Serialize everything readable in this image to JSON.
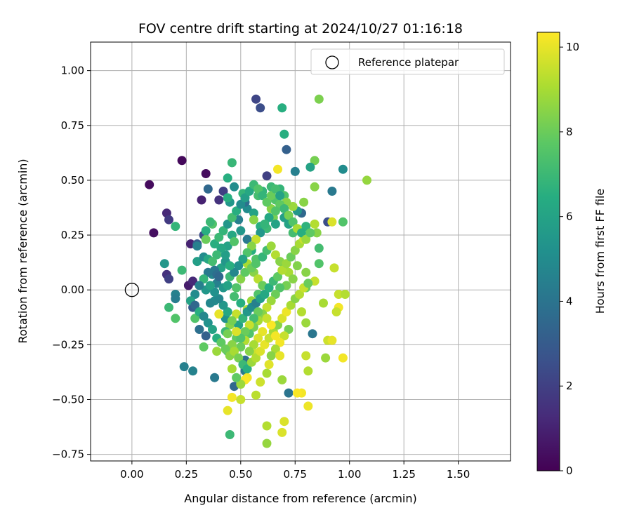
{
  "chart_data": {
    "type": "scatter",
    "title": "FOV centre drift starting at 2024/10/27 01:16:18",
    "xlabel": "Angular distance from reference (arcmin)",
    "ylabel": "Rotation from reference (arcmin)",
    "xlim": [
      -0.19,
      1.74
    ],
    "ylim": [
      -0.78,
      1.13
    ],
    "xticks": [
      "0.00",
      "0.25",
      "0.50",
      "0.75",
      "1.00",
      "1.25",
      "1.50"
    ],
    "yticks": [
      "−0.75",
      "−0.50",
      "−0.25",
      "0.00",
      "0.25",
      "0.50",
      "0.75",
      "1.00"
    ],
    "xtick_values": [
      0,
      0.25,
      0.5,
      0.75,
      1.0,
      1.25,
      1.5
    ],
    "ytick_values": [
      -0.75,
      -0.5,
      -0.25,
      0,
      0.25,
      0.5,
      0.75,
      1.0
    ],
    "grid": true,
    "legend": {
      "label": "Reference platepar",
      "placement": "top-right"
    },
    "reference_point": {
      "x": 0.0,
      "y": 0.0
    },
    "colorbar": {
      "label": "Hours from first FF file",
      "colormap": "viridis",
      "range": [
        0,
        10.35
      ],
      "ticks": [
        "0",
        "2",
        "4",
        "6",
        "8",
        "10"
      ],
      "tick_values": [
        0,
        2,
        4,
        6,
        8,
        10
      ]
    },
    "points": [
      [
        0.08,
        0.48,
        0.3
      ],
      [
        0.1,
        0.26,
        0.4
      ],
      [
        0.23,
        0.59,
        0.2
      ],
      [
        0.34,
        0.53,
        0.3
      ],
      [
        0.16,
        0.35,
        1.2
      ],
      [
        0.17,
        0.32,
        1.8
      ],
      [
        0.16,
        0.07,
        1.5
      ],
      [
        0.17,
        0.05,
        2.0
      ],
      [
        0.26,
        0.02,
        0.8
      ],
      [
        0.28,
        0.04,
        1.2
      ],
      [
        0.27,
        0.21,
        1.0
      ],
      [
        0.33,
        0.25,
        2.5
      ],
      [
        0.35,
        0.46,
        3.5
      ],
      [
        0.32,
        0.41,
        1.0
      ],
      [
        0.57,
        0.87,
        2.2
      ],
      [
        0.59,
        0.83,
        2.5
      ],
      [
        0.62,
        0.52,
        2.0
      ],
      [
        0.4,
        0.41,
        1.5
      ],
      [
        0.42,
        0.45,
        2.0
      ],
      [
        0.3,
        0.21,
        3.0
      ],
      [
        0.28,
        -0.08,
        3.0
      ],
      [
        0.31,
        -0.18,
        3.8
      ],
      [
        0.34,
        -0.21,
        3.2
      ],
      [
        0.38,
        -0.4,
        4.2
      ],
      [
        0.24,
        -0.35,
        4.5
      ],
      [
        0.28,
        -0.37,
        4.6
      ],
      [
        0.47,
        -0.44,
        3.5
      ],
      [
        0.52,
        -0.32,
        3.8
      ],
      [
        0.52,
        -0.37,
        4.3
      ],
      [
        0.72,
        -0.47,
        4.0
      ],
      [
        0.83,
        -0.2,
        4.1
      ],
      [
        0.75,
        0.54,
        4.5
      ],
      [
        0.92,
        0.45,
        4.2
      ],
      [
        0.97,
        0.55,
        5.0
      ],
      [
        0.71,
        0.64,
        3.2
      ],
      [
        0.69,
        0.83,
        6.5
      ],
      [
        0.7,
        0.71,
        6.5
      ],
      [
        0.86,
        0.87,
        8.3
      ],
      [
        0.46,
        0.58,
        6.9
      ],
      [
        0.84,
        0.59,
        8.2
      ],
      [
        0.82,
        0.56,
        6.0
      ],
      [
        1.08,
        0.5,
        8.7
      ],
      [
        0.84,
        0.47,
        8.5
      ],
      [
        0.79,
        0.4,
        8.5
      ],
      [
        0.78,
        0.35,
        3.5
      ],
      [
        0.8,
        0.29,
        6.7
      ],
      [
        0.85,
        0.26,
        8.5
      ],
      [
        0.9,
        0.31,
        2.5
      ],
      [
        0.92,
        0.31,
        9.8
      ],
      [
        0.97,
        0.31,
        7.5
      ],
      [
        0.86,
        0.19,
        7.2
      ],
      [
        0.86,
        0.12,
        7.5
      ],
      [
        0.76,
        0.11,
        8.4
      ],
      [
        0.8,
        0.08,
        8.5
      ],
      [
        0.93,
        0.1,
        9.5
      ],
      [
        0.84,
        0.04,
        9.5
      ],
      [
        0.8,
        0.01,
        8.0
      ],
      [
        0.88,
        -0.06,
        9.0
      ],
      [
        0.95,
        -0.02,
        9.5
      ],
      [
        0.98,
        -0.02,
        9.2
      ],
      [
        0.95,
        -0.08,
        10.2
      ],
      [
        0.94,
        -0.1,
        9.5
      ],
      [
        0.78,
        -0.1,
        9.2
      ],
      [
        0.8,
        -0.15,
        8.8
      ],
      [
        0.9,
        -0.23,
        9.6
      ],
      [
        0.92,
        -0.23,
        10.0
      ],
      [
        0.97,
        -0.31,
        10.2
      ],
      [
        0.89,
        -0.31,
        8.8
      ],
      [
        0.8,
        -0.3,
        9.5
      ],
      [
        0.81,
        -0.37,
        9.2
      ],
      [
        0.78,
        -0.47,
        10.2
      ],
      [
        0.81,
        -0.53,
        10.1
      ],
      [
        0.76,
        -0.47,
        10.3
      ],
      [
        0.69,
        -0.41,
        8.8
      ],
      [
        0.7,
        -0.6,
        9.8
      ],
      [
        0.69,
        -0.65,
        9.8
      ],
      [
        0.62,
        -0.62,
        9.2
      ],
      [
        0.62,
        -0.7,
        8.7
      ],
      [
        0.45,
        -0.66,
        7.0
      ],
      [
        0.44,
        -0.55,
        10.0
      ],
      [
        0.46,
        -0.49,
        10.2
      ],
      [
        0.5,
        -0.5,
        9.5
      ],
      [
        0.57,
        -0.48,
        9.3
      ],
      [
        0.59,
        -0.42,
        9.6
      ],
      [
        0.53,
        -0.4,
        10.2
      ],
      [
        0.62,
        -0.38,
        9.0
      ],
      [
        0.57,
        -0.29,
        9.6
      ],
      [
        0.63,
        -0.34,
        9.9
      ],
      [
        0.44,
        -0.28,
        7.0
      ],
      [
        0.39,
        -0.28,
        8.8
      ],
      [
        0.33,
        -0.26,
        7.8
      ],
      [
        0.29,
        -0.13,
        7.5
      ],
      [
        0.23,
        0.09,
        7.0
      ],
      [
        0.2,
        -0.13,
        7.5
      ],
      [
        0.2,
        -0.02,
        4.6
      ],
      [
        0.2,
        -0.04,
        4.4
      ],
      [
        0.17,
        -0.08,
        7.0
      ],
      [
        0.15,
        0.12,
        5.5
      ],
      [
        0.2,
        0.29,
        6.8
      ],
      [
        0.3,
        0.13,
        5.8
      ],
      [
        0.3,
        0.2,
        4.5
      ],
      [
        0.37,
        0.3,
        7.5
      ],
      [
        0.34,
        0.23,
        8.0
      ],
      [
        0.34,
        0.27,
        6.5
      ],
      [
        0.36,
        0.31,
        7.0
      ],
      [
        0.33,
        0.15,
        5.0
      ],
      [
        0.35,
        0.14,
        6.2
      ],
      [
        0.37,
        0.07,
        4.8
      ],
      [
        0.39,
        0.03,
        4.5
      ],
      [
        0.41,
        0.1,
        6.0
      ],
      [
        0.43,
        0.13,
        5.5
      ],
      [
        0.44,
        0.2,
        6.0
      ],
      [
        0.46,
        0.25,
        6.2
      ],
      [
        0.47,
        0.22,
        7.5
      ],
      [
        0.45,
        0.4,
        5.5
      ],
      [
        0.47,
        0.47,
        5.0
      ],
      [
        0.44,
        0.42,
        6.5
      ],
      [
        0.44,
        0.51,
        6.5
      ],
      [
        0.51,
        0.44,
        6.8
      ],
      [
        0.53,
        0.37,
        5.0
      ],
      [
        0.56,
        0.35,
        6.0
      ],
      [
        0.56,
        0.32,
        8.5
      ],
      [
        0.59,
        0.29,
        6.5
      ],
      [
        0.62,
        0.28,
        7.0
      ],
      [
        0.64,
        0.37,
        8.5
      ],
      [
        0.65,
        0.33,
        8.2
      ],
      [
        0.66,
        0.3,
        6.0
      ],
      [
        0.66,
        0.41,
        7.5
      ],
      [
        0.68,
        0.46,
        6.8
      ],
      [
        0.7,
        0.43,
        7.5
      ],
      [
        0.67,
        0.55,
        10.2
      ],
      [
        0.64,
        0.47,
        7.0
      ],
      [
        0.6,
        0.45,
        6.8
      ],
      [
        0.58,
        0.43,
        7.2
      ],
      [
        0.52,
        0.4,
        3.8
      ],
      [
        0.49,
        0.32,
        4.5
      ],
      [
        0.5,
        0.27,
        5.5
      ],
      [
        0.53,
        0.23,
        4.2
      ],
      [
        0.55,
        0.18,
        6.5
      ],
      [
        0.57,
        0.14,
        7.5
      ],
      [
        0.56,
        0.08,
        8.5
      ],
      [
        0.58,
        0.05,
        9.3
      ],
      [
        0.6,
        0.02,
        8.0
      ],
      [
        0.58,
        -0.02,
        7.5
      ],
      [
        0.55,
        -0.05,
        8.8
      ],
      [
        0.53,
        -0.09,
        9.2
      ],
      [
        0.5,
        -0.06,
        6.5
      ],
      [
        0.47,
        -0.03,
        7.2
      ],
      [
        0.48,
        -0.11,
        9.5
      ],
      [
        0.45,
        -0.16,
        8.5
      ],
      [
        0.43,
        -0.19,
        7.0
      ],
      [
        0.43,
        -0.13,
        5.2
      ],
      [
        0.4,
        -0.11,
        10.0
      ],
      [
        0.38,
        -0.05,
        5.0
      ],
      [
        0.36,
        -0.06,
        4.8
      ],
      [
        0.34,
        0.0,
        5.5
      ],
      [
        0.38,
        0.09,
        4.2
      ],
      [
        0.39,
        0.07,
        3.8
      ],
      [
        0.4,
        0.06,
        3.5
      ],
      [
        0.42,
        0.01,
        5.5
      ],
      [
        0.44,
        0.02,
        6.0
      ],
      [
        0.45,
        0.06,
        7.0
      ],
      [
        0.48,
        0.01,
        7.5
      ],
      [
        0.5,
        0.05,
        8.5
      ],
      [
        0.52,
        0.08,
        7.8
      ],
      [
        0.53,
        0.12,
        9.0
      ],
      [
        0.55,
        0.1,
        8.0
      ],
      [
        0.57,
        0.12,
        7.5
      ],
      [
        0.6,
        0.15,
        6.8
      ],
      [
        0.62,
        0.18,
        7.2
      ],
      [
        0.64,
        0.2,
        8.8
      ],
      [
        0.66,
        0.16,
        9.2
      ],
      [
        0.68,
        0.13,
        8.5
      ],
      [
        0.7,
        0.1,
        8.2
      ],
      [
        0.72,
        0.08,
        9.0
      ],
      [
        0.74,
        0.05,
        8.5
      ],
      [
        0.71,
        0.02,
        8.2
      ],
      [
        0.68,
        0.01,
        7.5
      ],
      [
        0.66,
        -0.02,
        8.0
      ],
      [
        0.64,
        -0.05,
        8.8
      ],
      [
        0.62,
        -0.08,
        9.5
      ],
      [
        0.6,
        -0.11,
        8.5
      ],
      [
        0.58,
        -0.14,
        9.0
      ],
      [
        0.56,
        -0.17,
        8.2
      ],
      [
        0.54,
        -0.2,
        7.5
      ],
      [
        0.52,
        -0.23,
        9.2
      ],
      [
        0.5,
        -0.26,
        8.0
      ],
      [
        0.48,
        -0.22,
        7.8
      ],
      [
        0.46,
        -0.25,
        8.5
      ],
      [
        0.44,
        -0.2,
        8.2
      ],
      [
        0.49,
        -0.16,
        6.0
      ],
      [
        0.51,
        -0.13,
        6.8
      ],
      [
        0.53,
        -0.1,
        5.5
      ],
      [
        0.55,
        -0.08,
        5.0
      ],
      [
        0.57,
        -0.06,
        4.5
      ],
      [
        0.59,
        -0.04,
        5.8
      ],
      [
        0.61,
        -0.02,
        6.2
      ],
      [
        0.63,
        0.01,
        6.5
      ],
      [
        0.65,
        0.04,
        7.0
      ],
      [
        0.67,
        0.06,
        7.8
      ],
      [
        0.69,
        0.09,
        9.2
      ],
      [
        0.71,
        0.12,
        8.8
      ],
      [
        0.73,
        0.15,
        8.0
      ],
      [
        0.75,
        0.18,
        8.5
      ],
      [
        0.77,
        0.21,
        9.0
      ],
      [
        0.79,
        0.23,
        9.5
      ],
      [
        0.74,
        0.26,
        7.2
      ],
      [
        0.72,
        0.3,
        6.0
      ],
      [
        0.7,
        0.33,
        5.8
      ],
      [
        0.76,
        0.36,
        5.5
      ],
      [
        0.74,
        0.38,
        8.8
      ],
      [
        0.71,
        0.4,
        8.5
      ],
      [
        0.68,
        0.39,
        7.8
      ],
      [
        0.66,
        0.36,
        7.5
      ],
      [
        0.63,
        0.33,
        6.2
      ],
      [
        0.61,
        0.3,
        6.8
      ],
      [
        0.59,
        0.26,
        5.5
      ],
      [
        0.57,
        0.23,
        9.5
      ],
      [
        0.55,
        0.2,
        8.5
      ],
      [
        0.53,
        0.17,
        7.5
      ],
      [
        0.51,
        0.14,
        6.0
      ],
      [
        0.49,
        0.11,
        5.2
      ],
      [
        0.47,
        0.08,
        4.8
      ],
      [
        0.45,
        0.11,
        6.5
      ],
      [
        0.43,
        0.16,
        5.8
      ],
      [
        0.41,
        0.19,
        6.2
      ],
      [
        0.39,
        0.16,
        7.0
      ],
      [
        0.37,
        0.13,
        7.2
      ],
      [
        0.35,
        0.08,
        4.2
      ],
      [
        0.33,
        0.05,
        6.8
      ],
      [
        0.31,
        0.02,
        4.5
      ],
      [
        0.29,
        -0.02,
        5.0
      ],
      [
        0.27,
        -0.05,
        6.0
      ],
      [
        0.29,
        -0.07,
        3.5
      ],
      [
        0.31,
        -0.1,
        6.5
      ],
      [
        0.33,
        -0.12,
        4.8
      ],
      [
        0.35,
        -0.15,
        5.2
      ],
      [
        0.37,
        -0.18,
        6.0
      ],
      [
        0.39,
        -0.22,
        6.5
      ],
      [
        0.41,
        -0.24,
        7.8
      ],
      [
        0.43,
        -0.27,
        8.0
      ],
      [
        0.45,
        -0.3,
        8.5
      ],
      [
        0.47,
        -0.28,
        9.0
      ],
      [
        0.49,
        -0.31,
        8.2
      ],
      [
        0.51,
        -0.34,
        7.0
      ],
      [
        0.53,
        -0.36,
        6.5
      ],
      [
        0.55,
        -0.33,
        8.8
      ],
      [
        0.57,
        -0.31,
        9.2
      ],
      [
        0.59,
        -0.28,
        9.8
      ],
      [
        0.61,
        -0.25,
        10.0
      ],
      [
        0.63,
        -0.22,
        9.5
      ],
      [
        0.65,
        -0.19,
        9.0
      ],
      [
        0.67,
        -0.16,
        8.5
      ],
      [
        0.69,
        -0.13,
        9.8
      ],
      [
        0.71,
        -0.1,
        10.1
      ],
      [
        0.73,
        -0.07,
        9.0
      ],
      [
        0.75,
        -0.04,
        8.5
      ],
      [
        0.77,
        -0.02,
        9.2
      ],
      [
        0.79,
        0.01,
        9.5
      ],
      [
        0.81,
        0.03,
        8.0
      ],
      [
        0.72,
        -0.18,
        8.2
      ],
      [
        0.7,
        -0.21,
        9.5
      ],
      [
        0.68,
        -0.24,
        10.2
      ],
      [
        0.66,
        -0.27,
        9.0
      ],
      [
        0.64,
        -0.3,
        8.5
      ],
      [
        0.68,
        -0.3,
        10.0
      ],
      [
        0.66,
        -0.21,
        10.2
      ],
      [
        0.64,
        -0.16,
        10.3
      ],
      [
        0.62,
        -0.13,
        9.5
      ],
      [
        0.6,
        -0.19,
        10.0
      ],
      [
        0.58,
        -0.22,
        9.8
      ],
      [
        0.56,
        -0.25,
        9.0
      ],
      [
        0.54,
        -0.28,
        8.5
      ],
      [
        0.52,
        -0.41,
        10.3
      ],
      [
        0.5,
        -0.43,
        8.8
      ],
      [
        0.48,
        -0.4,
        7.8
      ],
      [
        0.46,
        -0.36,
        9.0
      ],
      [
        0.58,
        -0.1,
        8.0
      ],
      [
        0.56,
        -0.13,
        7.2
      ],
      [
        0.54,
        -0.16,
        9.5
      ],
      [
        0.52,
        -0.19,
        8.0
      ],
      [
        0.5,
        -0.22,
        7.5
      ],
      [
        0.48,
        -0.19,
        9.8
      ],
      [
        0.46,
        -0.14,
        8.2
      ],
      [
        0.44,
        -0.1,
        6.2
      ],
      [
        0.42,
        -0.07,
        5.5
      ],
      [
        0.4,
        -0.04,
        4.8
      ],
      [
        0.38,
        -0.01,
        5.2
      ],
      [
        0.36,
        0.02,
        6.0
      ],
      [
        0.38,
        0.21,
        6.5
      ],
      [
        0.4,
        0.24,
        7.0
      ],
      [
        0.42,
        0.27,
        6.8
      ],
      [
        0.44,
        0.3,
        5.5
      ],
      [
        0.46,
        0.33,
        7.2
      ],
      [
        0.48,
        0.36,
        6.5
      ],
      [
        0.5,
        0.39,
        5.0
      ],
      [
        0.52,
        0.42,
        5.8
      ],
      [
        0.54,
        0.45,
        6.2
      ],
      [
        0.56,
        0.48,
        7.0
      ],
      [
        0.58,
        0.46,
        7.5
      ],
      [
        0.6,
        0.43,
        6.8
      ],
      [
        0.62,
        0.4,
        7.8
      ],
      [
        0.64,
        0.43,
        8.0
      ],
      [
        0.66,
        0.46,
        7.2
      ],
      [
        0.68,
        0.43,
        6.0
      ],
      [
        0.7,
        0.37,
        7.0
      ],
      [
        0.72,
        0.34,
        8.2
      ],
      [
        0.74,
        0.31,
        7.5
      ],
      [
        0.76,
        0.28,
        9.0
      ],
      [
        0.78,
        0.26,
        6.5
      ],
      [
        0.8,
        0.23,
        8.8
      ],
      [
        0.82,
        0.26,
        7.8
      ],
      [
        0.84,
        0.3,
        9.2
      ]
    ]
  }
}
